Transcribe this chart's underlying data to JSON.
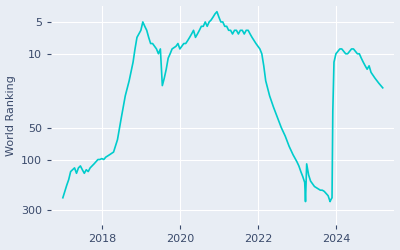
{
  "ylabel": "World Ranking",
  "line_color": "#00CCCC",
  "background_color": "#E8EDF4",
  "yticks": [
    5,
    10,
    50,
    100,
    300
  ],
  "xtick_years": [
    2018,
    2020,
    2022,
    2024
  ],
  "line_width": 1.2,
  "xlim_start": 2016.7,
  "xlim_end": 2025.5,
  "ylim_bottom": 3.5,
  "ylim_top": 420,
  "data_points": [
    [
      2017.0,
      230
    ],
    [
      2017.05,
      200
    ],
    [
      2017.1,
      175
    ],
    [
      2017.15,
      155
    ],
    [
      2017.2,
      130
    ],
    [
      2017.3,
      120
    ],
    [
      2017.35,
      135
    ],
    [
      2017.4,
      120
    ],
    [
      2017.45,
      115
    ],
    [
      2017.5,
      125
    ],
    [
      2017.55,
      135
    ],
    [
      2017.6,
      125
    ],
    [
      2017.65,
      130
    ],
    [
      2017.7,
      120
    ],
    [
      2017.75,
      115
    ],
    [
      2017.8,
      110
    ],
    [
      2017.85,
      105
    ],
    [
      2017.9,
      100
    ],
    [
      2017.95,
      100
    ],
    [
      2018.0,
      98
    ],
    [
      2018.05,
      100
    ],
    [
      2018.1,
      95
    ],
    [
      2018.2,
      90
    ],
    [
      2018.3,
      85
    ],
    [
      2018.4,
      65
    ],
    [
      2018.5,
      40
    ],
    [
      2018.6,
      25
    ],
    [
      2018.7,
      18
    ],
    [
      2018.8,
      12
    ],
    [
      2018.85,
      9
    ],
    [
      2018.9,
      7
    ],
    [
      2019.0,
      6
    ],
    [
      2019.05,
      5
    ],
    [
      2019.1,
      5.5
    ],
    [
      2019.15,
      6
    ],
    [
      2019.2,
      7
    ],
    [
      2019.25,
      8
    ],
    [
      2019.3,
      8
    ],
    [
      2019.4,
      9
    ],
    [
      2019.45,
      10
    ],
    [
      2019.5,
      9
    ],
    [
      2019.55,
      20
    ],
    [
      2019.6,
      17
    ],
    [
      2019.65,
      14
    ],
    [
      2019.7,
      11
    ],
    [
      2019.75,
      10
    ],
    [
      2019.8,
      9
    ],
    [
      2019.9,
      8.5
    ],
    [
      2019.95,
      8
    ],
    [
      2020.0,
      9
    ],
    [
      2020.05,
      8.5
    ],
    [
      2020.1,
      8
    ],
    [
      2020.15,
      8
    ],
    [
      2020.2,
      7.5
    ],
    [
      2020.25,
      7
    ],
    [
      2020.3,
      6.5
    ],
    [
      2020.35,
      6
    ],
    [
      2020.4,
      7
    ],
    [
      2020.45,
      6.5
    ],
    [
      2020.5,
      6
    ],
    [
      2020.55,
      5.5
    ],
    [
      2020.6,
      5.5
    ],
    [
      2020.65,
      5
    ],
    [
      2020.7,
      5.5
    ],
    [
      2020.75,
      5
    ],
    [
      2020.8,
      4.8
    ],
    [
      2020.85,
      4.5
    ],
    [
      2020.9,
      4.2
    ],
    [
      2020.95,
      4.0
    ],
    [
      2021.0,
      4.5
    ],
    [
      2021.05,
      5
    ],
    [
      2021.1,
      5
    ],
    [
      2021.15,
      5.5
    ],
    [
      2021.2,
      5.5
    ],
    [
      2021.25,
      6
    ],
    [
      2021.3,
      6
    ],
    [
      2021.35,
      6.5
    ],
    [
      2021.4,
      6
    ],
    [
      2021.45,
      6
    ],
    [
      2021.5,
      6.5
    ],
    [
      2021.55,
      6
    ],
    [
      2021.6,
      6
    ],
    [
      2021.65,
      6.5
    ],
    [
      2021.7,
      6
    ],
    [
      2021.75,
      6
    ],
    [
      2021.8,
      6.5
    ],
    [
      2021.85,
      7
    ],
    [
      2021.9,
      7.5
    ],
    [
      2021.95,
      8
    ],
    [
      2022.0,
      8.5
    ],
    [
      2022.05,
      9
    ],
    [
      2022.1,
      10
    ],
    [
      2022.15,
      13
    ],
    [
      2022.2,
      18
    ],
    [
      2022.3,
      25
    ],
    [
      2022.4,
      32
    ],
    [
      2022.5,
      40
    ],
    [
      2022.6,
      50
    ],
    [
      2022.7,
      60
    ],
    [
      2022.8,
      75
    ],
    [
      2022.9,
      90
    ],
    [
      2023.0,
      105
    ],
    [
      2023.05,
      115
    ],
    [
      2023.1,
      130
    ],
    [
      2023.15,
      145
    ],
    [
      2023.2,
      165
    ],
    [
      2023.22,
      250
    ],
    [
      2023.25,
      110
    ],
    [
      2023.3,
      140
    ],
    [
      2023.35,
      160
    ],
    [
      2023.4,
      170
    ],
    [
      2023.45,
      180
    ],
    [
      2023.5,
      185
    ],
    [
      2023.55,
      190
    ],
    [
      2023.6,
      195
    ],
    [
      2023.65,
      195
    ],
    [
      2023.7,
      200
    ],
    [
      2023.75,
      210
    ],
    [
      2023.8,
      220
    ],
    [
      2023.85,
      250
    ],
    [
      2023.87,
      240
    ],
    [
      2023.9,
      230
    ],
    [
      2023.92,
      35
    ],
    [
      2023.95,
      12
    ],
    [
      2024.0,
      10
    ],
    [
      2024.05,
      9.5
    ],
    [
      2024.1,
      9
    ],
    [
      2024.15,
      9
    ],
    [
      2024.2,
      9.5
    ],
    [
      2024.25,
      10
    ],
    [
      2024.3,
      10
    ],
    [
      2024.35,
      9.5
    ],
    [
      2024.4,
      9
    ],
    [
      2024.45,
      9
    ],
    [
      2024.5,
      9.5
    ],
    [
      2024.55,
      10
    ],
    [
      2024.6,
      10
    ],
    [
      2024.65,
      11
    ],
    [
      2024.7,
      12
    ],
    [
      2024.75,
      13
    ],
    [
      2024.8,
      14
    ],
    [
      2024.85,
      13
    ],
    [
      2024.9,
      15
    ],
    [
      2024.95,
      16
    ],
    [
      2025.0,
      17
    ],
    [
      2025.1,
      19
    ],
    [
      2025.2,
      21
    ]
  ]
}
